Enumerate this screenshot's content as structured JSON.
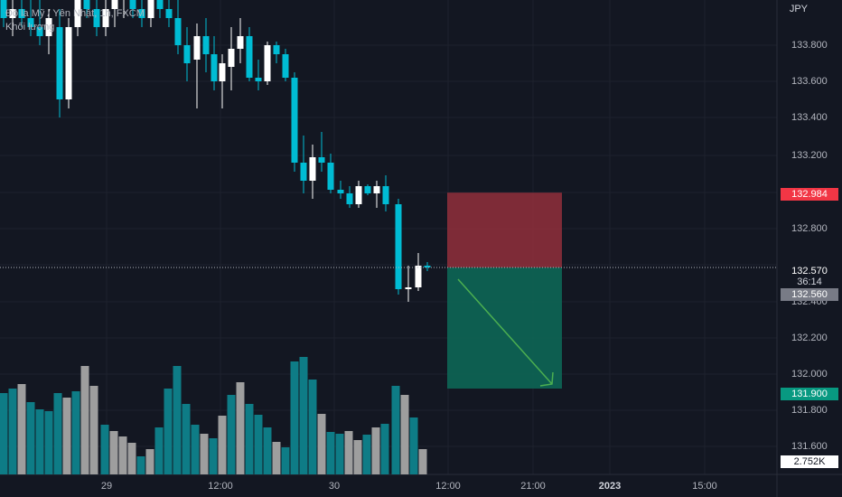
{
  "legend": {
    "symbol_line": "Đô la Mỹ / Yên Nhật, 1h, FXCM",
    "volume_label": "Khối lượng"
  },
  "axis": {
    "currency": "JPY",
    "price_labels": [
      "133.800",
      "133.600",
      "133.400",
      "133.200",
      "132.800",
      "132.400",
      "132.200",
      "132.000",
      "131.800",
      "131.600"
    ],
    "time_labels": [
      "29",
      "12:00",
      "30",
      "12:00",
      "21:00",
      "2023",
      "15:00"
    ]
  },
  "tags": {
    "stop_price": "132.984",
    "last_price": "132.570",
    "countdown": "36:14",
    "bid_price": "132.560",
    "target_price": "131.900",
    "volume_value": "2.752K"
  },
  "colors": {
    "background": "#131722",
    "up_candle": "#ffffff",
    "down_candle": "#00bcd4",
    "volume_up": "#9e9e9e",
    "volume_down": "#0e7c86",
    "stop_zone": "#8b2d3a",
    "target_zone": "#0d6655",
    "stop_tag": "#f23645",
    "target_tag": "#089981",
    "arrow": "#4caf50"
  },
  "chart_data": {
    "type": "candlestick",
    "timeframe": "1h",
    "price_range": [
      131.55,
      133.95
    ],
    "position": {
      "direction": "short",
      "entry": 132.57,
      "stop": 132.984,
      "target": 131.9
    }
  }
}
